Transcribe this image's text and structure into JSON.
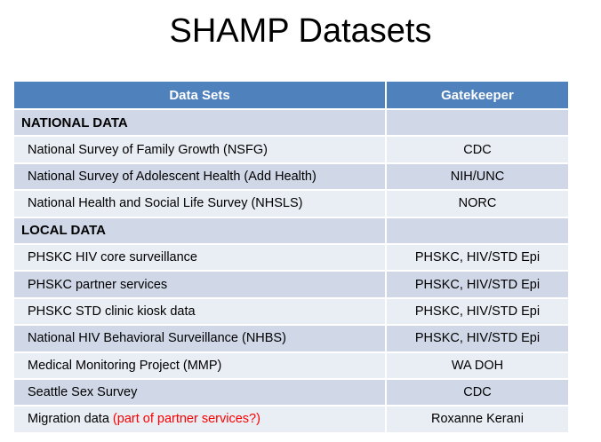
{
  "title": "SHAMP Datasets",
  "table": {
    "headers": {
      "datasets": "Data Sets",
      "gatekeeper": "Gatekeeper"
    },
    "rows": [
      {
        "type": "section",
        "name": "NATIONAL DATA",
        "gatekeeper": ""
      },
      {
        "type": "item",
        "name": "National Survey of Family Growth (NSFG)",
        "gatekeeper": "CDC"
      },
      {
        "type": "item",
        "name": "National Survey of Adolescent Health (Add Health)",
        "gatekeeper": "NIH/UNC"
      },
      {
        "type": "item",
        "name": "National Health and Social Life Survey (NHSLS)",
        "gatekeeper": "NORC"
      },
      {
        "type": "section",
        "name": "LOCAL DATA",
        "gatekeeper": ""
      },
      {
        "type": "item",
        "name": "PHSKC HIV core surveillance",
        "gatekeeper": "PHSKC, HIV/STD Epi"
      },
      {
        "type": "item",
        "name": "PHSKC partner services",
        "gatekeeper": "PHSKC, HIV/STD Epi"
      },
      {
        "type": "item",
        "name": "PHSKC STD clinic kiosk data",
        "gatekeeper": "PHSKC, HIV/STD Epi"
      },
      {
        "type": "item",
        "name": "National HIV Behavioral Surveillance (NHBS)",
        "gatekeeper": "PHSKC, HIV/STD Epi"
      },
      {
        "type": "item",
        "name": "Medical Monitoring Project (MMP)",
        "gatekeeper": "WA DOH"
      },
      {
        "type": "item",
        "name": "Seattle Sex Survey",
        "gatekeeper": "CDC"
      },
      {
        "type": "item",
        "name": "Migration data",
        "note": "(part of partner services?)",
        "gatekeeper": "Roxanne Kerani"
      }
    ]
  },
  "colors": {
    "header_bg": "#4f81bd",
    "row_dark": "#d0d8e8",
    "row_light": "#e9edf4",
    "note_text": "#ff0000"
  }
}
